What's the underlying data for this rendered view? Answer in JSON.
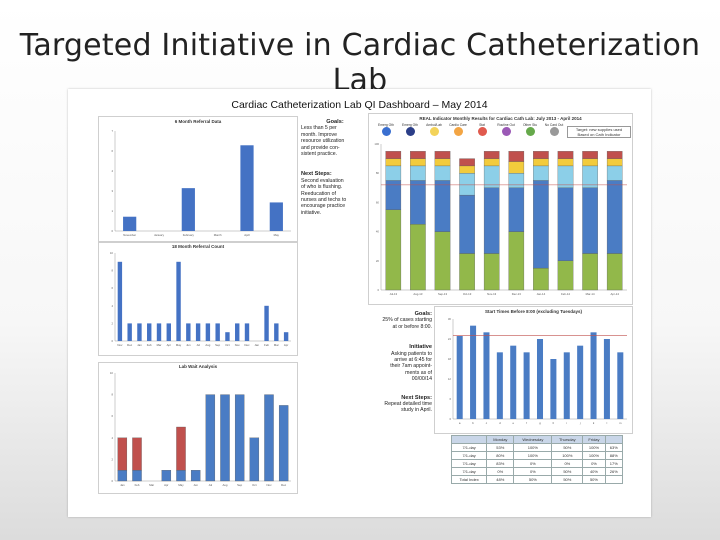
{
  "slide_title": "Targeted Initiative in Cardiac Catheterization Lab",
  "dashboard_title": "Cardiac Catheterization Lab QI Dashboard – May 2014",
  "goals_panel": {
    "goals_heading": "Goals:",
    "goals_text": [
      "Less than 5 per",
      "month. Improve",
      "resource utilization",
      "and provide con-",
      "sistent practice."
    ],
    "next_heading": "Next Steps:",
    "next_text": [
      "Second evaluation",
      "of who is flushing.",
      "Reeducation of",
      "nurses and techs to",
      "encourage practice",
      "initiative."
    ]
  },
  "goals2_panel": {
    "goals_heading": "Goals:",
    "goals_text": [
      "25% of cases starting",
      "at or before 8:00."
    ],
    "initiative_heading": "Initiative",
    "initiative_text": [
      "Asking patients to",
      "arrive at 6:45 for",
      "their 7am appoint-",
      "ments as of",
      "00/00/14"
    ],
    "next_heading": "Next Steps:",
    "next_text": [
      "Repeat detailed time",
      "study in April."
    ]
  },
  "real_legend": [
    "Emerg Oth",
    "Emerg Oth",
    "Ambul/Lab",
    "Cardio Care",
    "Stat",
    "Routine Out",
    "Other Stu",
    "No Card Out"
  ],
  "real_note": [
    "Target: new supplies used",
    "Based on Cath Indicator"
  ],
  "table": {
    "header": [
      "",
      "Monday",
      "Wednesday",
      "Thursday",
      "Friday",
      ""
    ],
    "rows": [
      [
        "7/1-day",
        "53%",
        "100%",
        "50%",
        "100%",
        "63%"
      ],
      [
        "7/1-day",
        "80%",
        "100%",
        "100%",
        "100%",
        "88%"
      ],
      [
        "7/1-day",
        "83%",
        "0%",
        "0%",
        "0%",
        "17%"
      ],
      [
        "7/1-day",
        "0%",
        "0%",
        "50%",
        "40%",
        "26%"
      ],
      [
        "Total Index",
        "48%",
        "50%",
        "50%",
        "50%",
        ""
      ]
    ]
  },
  "chart_data": [
    {
      "type": "bar",
      "title": "6 Month Referral Data",
      "categories": [
        "November",
        "January",
        "February",
        "March",
        "April",
        "May"
      ],
      "values": [
        1,
        0,
        3,
        0,
        6,
        2
      ],
      "ylim": [
        0,
        7
      ],
      "color": "#4472c4"
    },
    {
      "type": "bar",
      "title": "18 Month Referral Count",
      "categories": [
        "Nov",
        "Dec",
        "Jan",
        "Feb",
        "Mar",
        "Apr",
        "May",
        "Jun",
        "Jul",
        "Aug",
        "Sep",
        "Oct",
        "Nov",
        "Dec",
        "Jan",
        "Feb",
        "Mar",
        "Apr"
      ],
      "values": [
        9,
        2,
        2,
        2,
        2,
        2,
        9,
        2,
        2,
        2,
        2,
        1,
        2,
        2,
        0,
        4,
        2,
        1
      ],
      "ylim": [
        0,
        10
      ],
      "color": "#4472c4"
    },
    {
      "type": "bar",
      "title": "REAL Indicator Monthly Results for Cardiac Cath Lab: July 2013 - April 2014",
      "categories": [
        "Jul-13",
        "Aug-13",
        "Sep-13",
        "Oct-13",
        "Nov-13",
        "Dec-13",
        "Jan-14",
        "Feb-14",
        "Mar-14",
        "Apr-14"
      ],
      "series": [
        {
          "name": "green",
          "color": "#92b84a",
          "values": [
            55,
            45,
            40,
            25,
            25,
            40,
            15,
            20,
            25,
            25
          ]
        },
        {
          "name": "blue",
          "color": "#4a7cc4",
          "values": [
            20,
            30,
            35,
            40,
            45,
            30,
            60,
            50,
            45,
            50
          ]
        },
        {
          "name": "light blue",
          "color": "#8ccfe8",
          "values": [
            10,
            10,
            10,
            15,
            15,
            10,
            10,
            15,
            15,
            10
          ]
        },
        {
          "name": "yellow",
          "color": "#f2cb3c",
          "values": [
            5,
            5,
            5,
            5,
            5,
            8,
            5,
            5,
            5,
            5
          ]
        },
        {
          "name": "red",
          "color": "#c0504d",
          "values": [
            5,
            5,
            5,
            5,
            5,
            7,
            5,
            5,
            5,
            5
          ]
        }
      ],
      "ylim": [
        0,
        100
      ],
      "goal_line": 72
    },
    {
      "type": "bar",
      "title": "Start Times Before 8:00 (excluding Tuesdays)",
      "categories": [
        "a",
        "b",
        "c",
        "d",
        "e",
        "f",
        "g",
        "h",
        "i",
        "j",
        "k",
        "l",
        "m"
      ],
      "values": [
        25,
        28,
        26,
        20,
        22,
        20,
        24,
        18,
        20,
        22,
        26,
        24,
        20
      ],
      "goal_line": 25,
      "ylim": [
        0,
        30
      ],
      "color": "#4a7cc4"
    },
    {
      "type": "bar",
      "title": "Lab Wait Analysis",
      "categories": [
        "Jan",
        "Feb",
        "Mar",
        "Apr",
        "May",
        "Jun",
        "Jul",
        "Aug",
        "Sep",
        "Oct",
        "Nov",
        "Dec"
      ],
      "series": [
        {
          "name": "blue",
          "color": "#4a7cc4",
          "values": [
            1,
            1,
            0,
            1,
            1,
            1,
            8,
            8,
            8,
            4,
            8,
            7
          ]
        },
        {
          "name": "red",
          "color": "#c0504d",
          "values": [
            3,
            3,
            0,
            0,
            4,
            0,
            0,
            0,
            0,
            0,
            0,
            0
          ]
        }
      ],
      "ylim": [
        0,
        10
      ]
    }
  ]
}
